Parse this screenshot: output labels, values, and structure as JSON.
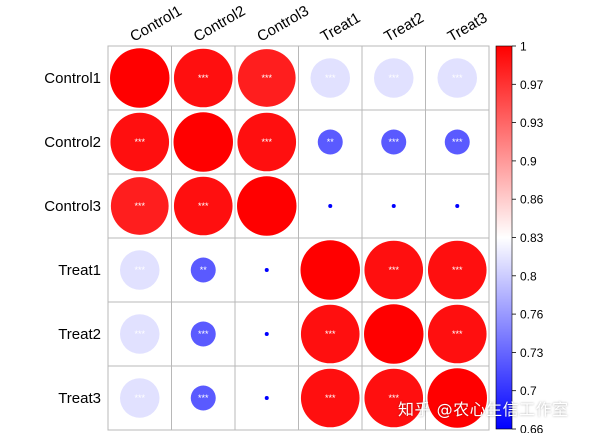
{
  "chart_data": {
    "type": "heatmap",
    "subtype": "correlation-circle-matrix",
    "row_labels": [
      "Control1",
      "Control2",
      "Control3",
      "Treat1",
      "Treat2",
      "Treat3"
    ],
    "col_labels": [
      "Control1",
      "Control2",
      "Control3",
      "Treat1",
      "Treat2",
      "Treat3"
    ],
    "values": [
      [
        1.0,
        0.99,
        0.98,
        0.81,
        0.81,
        0.81
      ],
      [
        0.99,
        1.0,
        0.99,
        0.72,
        0.72,
        0.72
      ],
      [
        0.98,
        0.99,
        1.0,
        0.66,
        0.66,
        0.66
      ],
      [
        0.81,
        0.72,
        0.66,
        1.0,
        0.99,
        0.99
      ],
      [
        0.81,
        0.72,
        0.66,
        0.99,
        1.0,
        0.99
      ],
      [
        0.81,
        0.72,
        0.66,
        0.99,
        0.99,
        1.0
      ]
    ],
    "significance": [
      [
        "",
        "***",
        "***",
        "***",
        "***",
        "***"
      ],
      [
        "***",
        "",
        "***",
        "**",
        "***",
        "***"
      ],
      [
        "***",
        "***",
        "",
        "",
        "",
        ""
      ],
      [
        "***",
        "**",
        "",
        "",
        "***",
        "***"
      ],
      [
        "***",
        "***",
        "",
        "***",
        "",
        "***"
      ],
      [
        "***",
        "***",
        "",
        "***",
        "***",
        ""
      ]
    ],
    "colorbar": {
      "min": 0.66,
      "max": 1,
      "ticks": [
        "1",
        "0.97",
        "0.93",
        "0.9",
        "0.86",
        "0.83",
        "0.8",
        "0.76",
        "0.73",
        "0.7",
        "0.66"
      ],
      "low_color": "#0000ff",
      "mid_color": "#ffffff",
      "high_color": "#ff0000"
    },
    "grid": true,
    "legend_placement": "right"
  },
  "watermark": "知乎 @农心生信工作室"
}
